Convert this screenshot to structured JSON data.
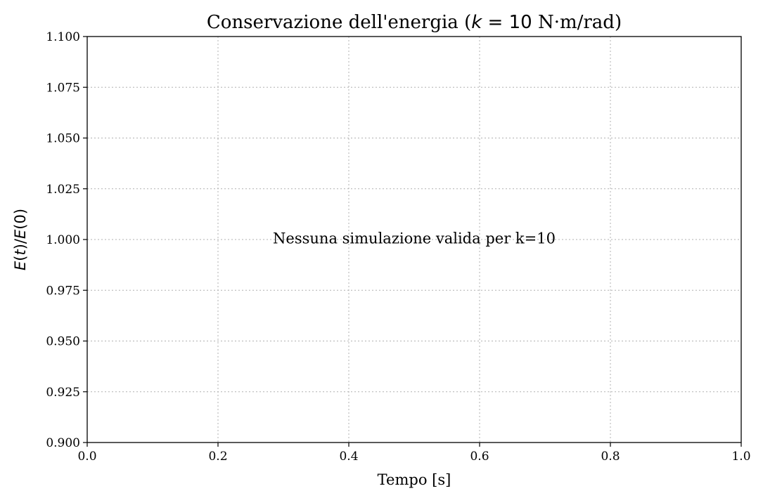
{
  "chart_data": {
    "type": "line",
    "title_prefix": "Conservazione dell'energia (",
    "title_math_var": "k",
    "title_math_rest": " = 10",
    "title_suffix": " N·m/rad)",
    "xlabel": "Tempo [s]",
    "ylabel_parts": [
      "E",
      "(",
      "t",
      ")/",
      "E",
      "(0)"
    ],
    "xlim": [
      0.0,
      1.0
    ],
    "ylim": [
      0.9,
      1.1
    ],
    "x_ticks": [
      "0.0",
      "0.2",
      "0.4",
      "0.6",
      "0.8",
      "1.0"
    ],
    "y_ticks": [
      "0.900",
      "0.925",
      "0.950",
      "0.975",
      "1.000",
      "1.025",
      "1.050",
      "1.075",
      "1.100"
    ],
    "grid": true,
    "series": [],
    "annotation": {
      "text": "Nessuna simulazione valida per k=10",
      "x": 0.5,
      "y": 1.0
    }
  }
}
